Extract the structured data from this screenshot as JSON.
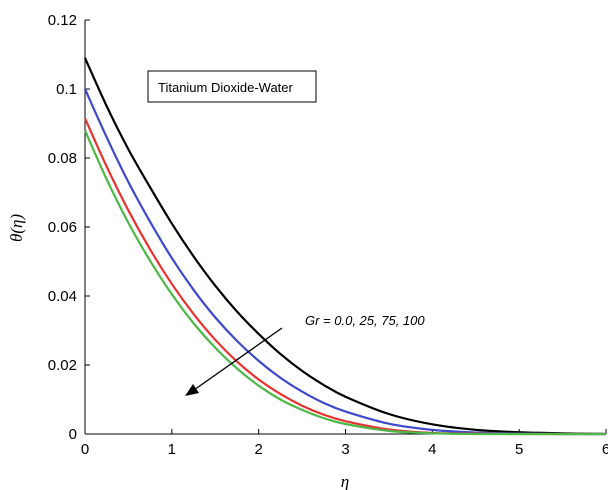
{
  "chart_data": {
    "type": "line",
    "xlabel": "η",
    "ylabel": "θ(η)",
    "xlim": [
      0,
      6
    ],
    "ylim": [
      0,
      0.12
    ],
    "x_ticks": [
      "0",
      "1",
      "2",
      "3",
      "4",
      "5",
      "6"
    ],
    "y_ticks": [
      "0",
      "0.02",
      "0.04",
      "0.06",
      "0.08",
      "0.1",
      "0.12"
    ],
    "grid": false,
    "legend_box_text": "Titanium Dioxide-Water",
    "annotation": "Gr = 0.0, 25, 75, 100",
    "series": [
      {
        "color": "#000000",
        "x": [
          0,
          0.25,
          0.5,
          0.75,
          1,
          1.25,
          1.5,
          1.75,
          2,
          2.25,
          2.5,
          2.75,
          3,
          3.5,
          4,
          4.5,
          5,
          5.5,
          6
        ],
        "y": [
          0.109,
          0.095,
          0.0825,
          0.0715,
          0.061,
          0.0515,
          0.043,
          0.0355,
          0.029,
          0.0232,
          0.0183,
          0.0142,
          0.0108,
          0.0058,
          0.0028,
          0.0012,
          0.0005,
          0.0002,
          0.0
        ]
      },
      {
        "color": "#3f48cc",
        "x": [
          0,
          0.25,
          0.5,
          0.75,
          1,
          1.25,
          1.5,
          1.75,
          2,
          2.25,
          2.5,
          2.75,
          3,
          3.5,
          4,
          4.5,
          5,
          5.5,
          6
        ],
        "y": [
          0.1,
          0.086,
          0.073,
          0.0615,
          0.051,
          0.0418,
          0.0338,
          0.027,
          0.0212,
          0.0163,
          0.0123,
          0.009,
          0.0065,
          0.003,
          0.0012,
          0.0004,
          0.0001,
          0.0,
          0.0
        ]
      },
      {
        "color": "#e8322f",
        "x": [
          0,
          0.25,
          0.5,
          0.75,
          1,
          1.25,
          1.5,
          1.75,
          2,
          2.25,
          2.5,
          2.75,
          3,
          3.5,
          4,
          4.5,
          5,
          5.5,
          6
        ],
        "y": [
          0.0915,
          0.0775,
          0.0648,
          0.0535,
          0.0435,
          0.0348,
          0.0273,
          0.021,
          0.0158,
          0.0116,
          0.0082,
          0.0056,
          0.0037,
          0.0013,
          0.0003,
          0.0001,
          0.0,
          0.0,
          0.0
        ]
      },
      {
        "color": "#4cb848",
        "x": [
          0,
          0.25,
          0.5,
          0.75,
          1,
          1.25,
          1.5,
          1.75,
          2,
          2.25,
          2.5,
          2.75,
          3,
          3.5,
          4,
          4.5,
          5,
          5.5,
          6
        ],
        "y": [
          0.088,
          0.0738,
          0.0612,
          0.0502,
          0.0405,
          0.0321,
          0.025,
          0.019,
          0.014,
          0.01,
          0.007,
          0.0046,
          0.0029,
          0.0009,
          0.0002,
          0.0,
          0.0,
          0.0,
          0.0
        ]
      }
    ]
  }
}
